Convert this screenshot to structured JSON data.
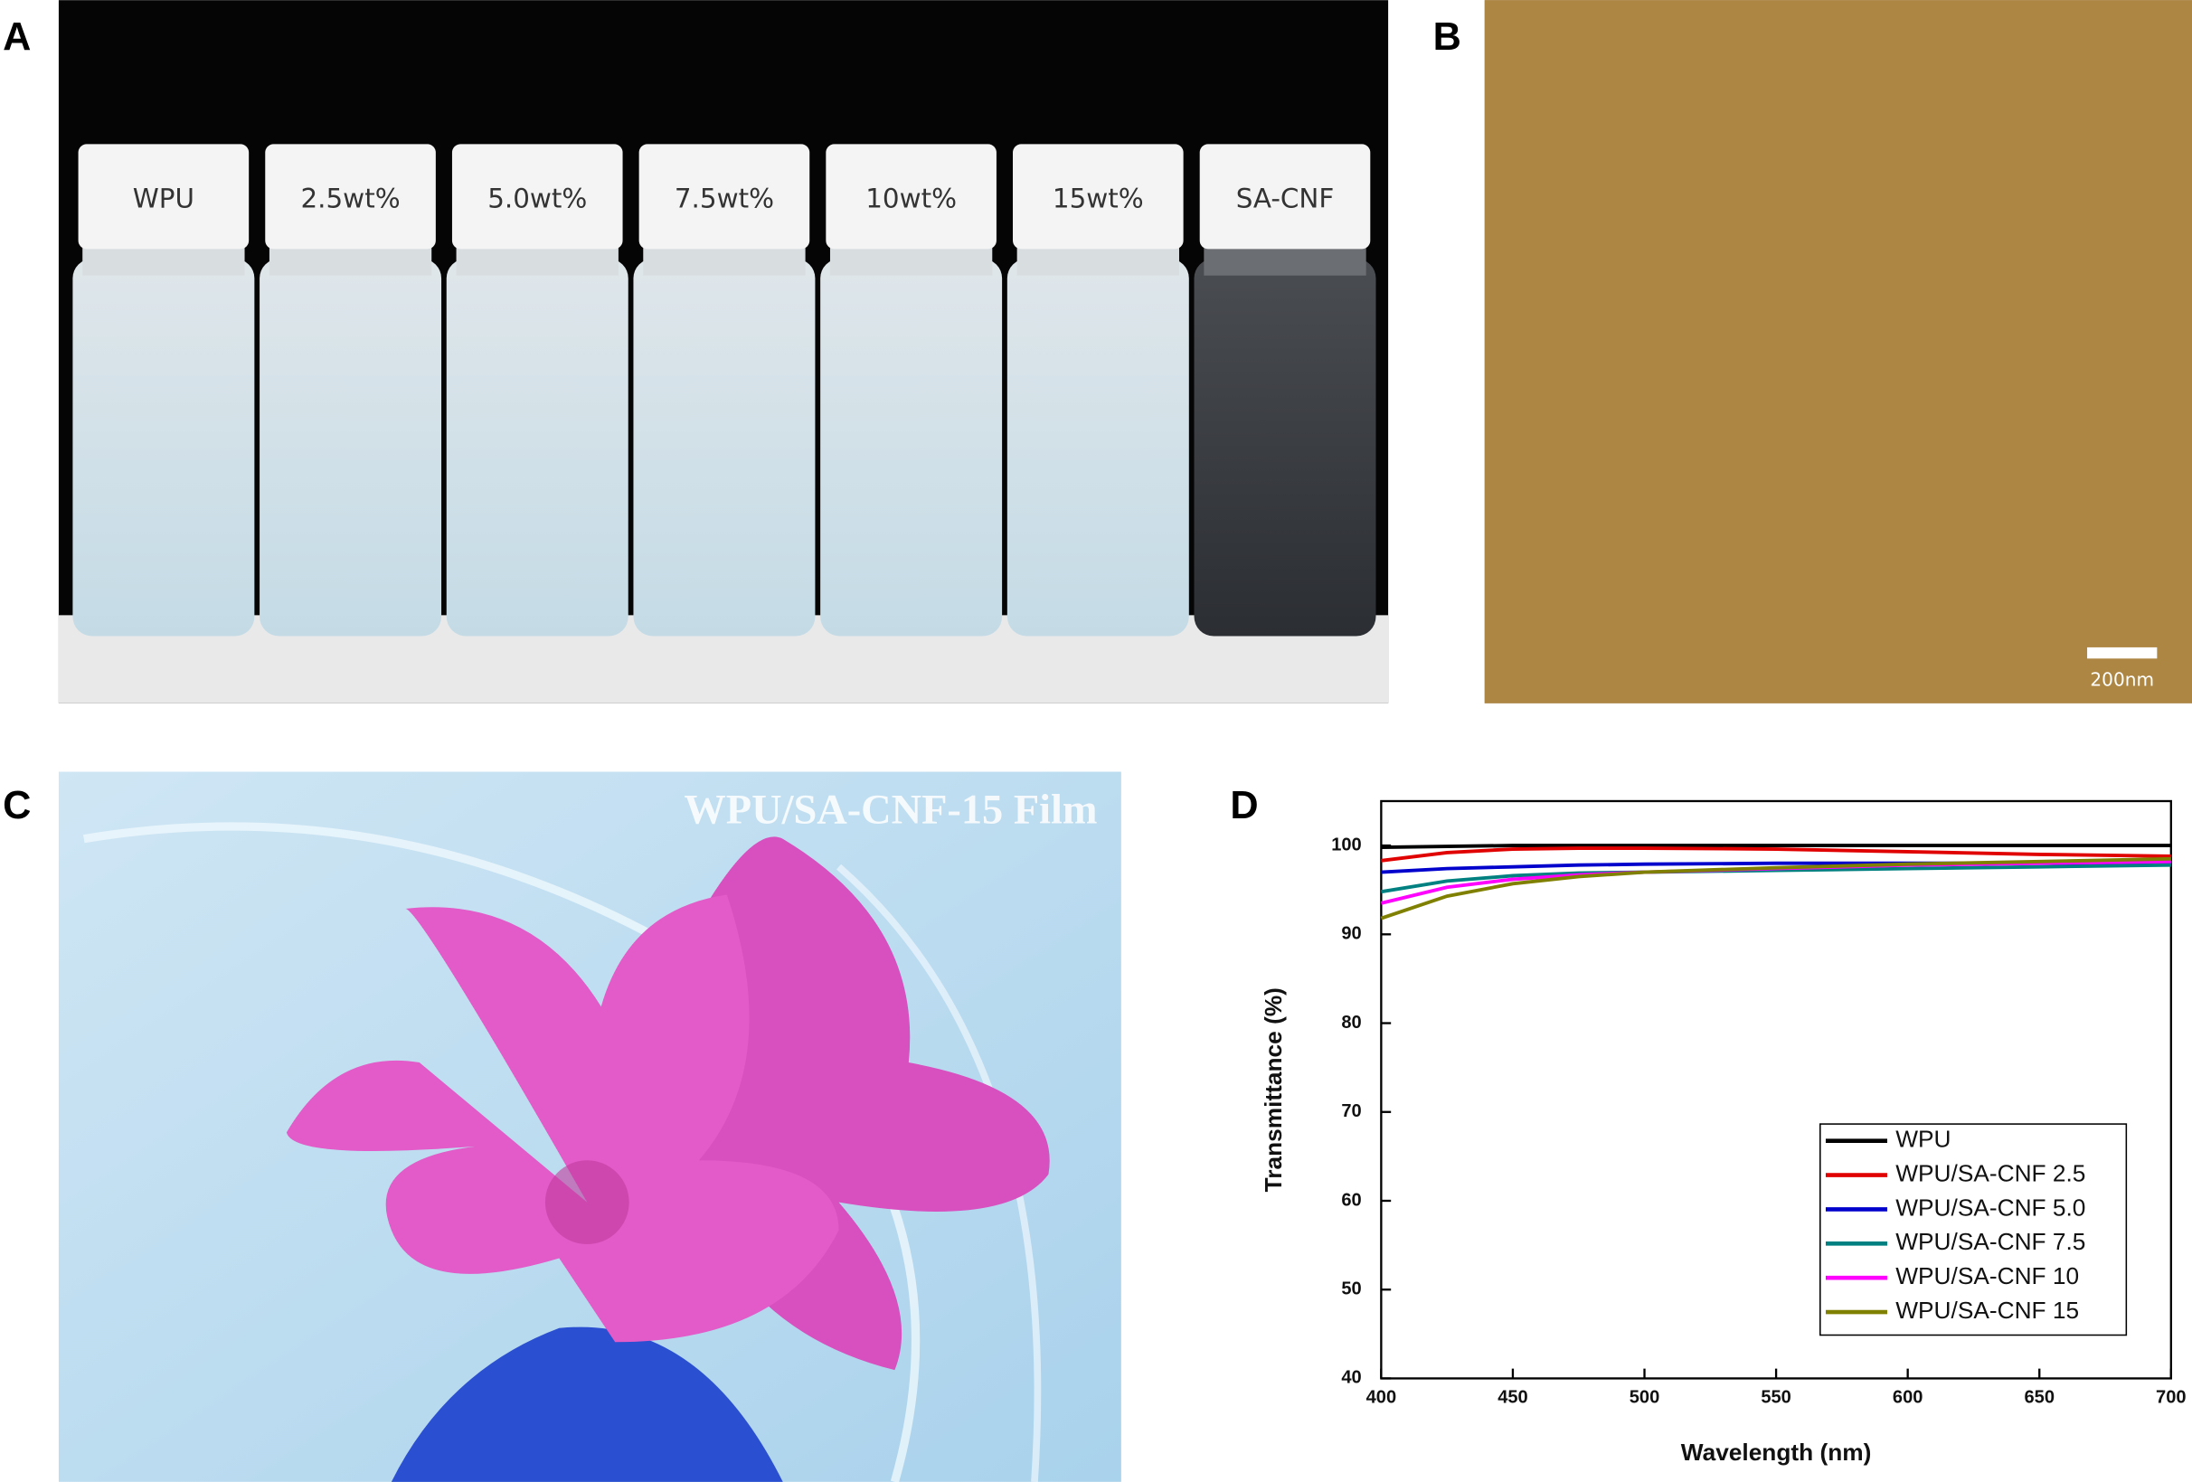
{
  "panel_a": {
    "label": "A",
    "vials": [
      "WPU",
      "2.5wt%",
      "5.0wt%",
      "7.5wt%",
      "10wt%",
      "15wt%",
      "SA-CNF"
    ]
  },
  "panel_b": {
    "label": "B",
    "scale_bar": "200nm"
  },
  "panel_c": {
    "label": "C",
    "caption": "WPU/SA-CNF-15 Film"
  },
  "chart_data": {
    "type": "line",
    "panel_label": "D",
    "x_label": "Wavelength (nm)",
    "y_label": "Transmittance (%)",
    "x": [
      400,
      425,
      450,
      475,
      500,
      550,
      600,
      650,
      700
    ],
    "series": [
      {
        "name": "WPU",
        "color": "#000000",
        "values": [
          99.8,
          99.9,
          100,
          100,
          100,
          100,
          100,
          100,
          100
        ]
      },
      {
        "name": "WPU/SA-CNF 2.5",
        "color": "#e00000",
        "values": [
          98.3,
          99.2,
          99.6,
          99.7,
          99.7,
          99.6,
          99.3,
          99.0,
          98.8
        ]
      },
      {
        "name": "WPU/SA-CNF 5.0",
        "color": "#0000cc",
        "values": [
          97.0,
          97.4,
          97.6,
          97.8,
          97.9,
          98.0,
          98.0,
          98.0,
          98.0
        ]
      },
      {
        "name": "WPU/SA-CNF 7.5",
        "color": "#008080",
        "values": [
          94.8,
          96.0,
          96.6,
          96.9,
          97.0,
          97.2,
          97.4,
          97.6,
          97.8
        ]
      },
      {
        "name": "WPU/SA-CNF 10",
        "color": "#ff00ff",
        "values": [
          93.5,
          95.3,
          96.2,
          96.7,
          97.0,
          97.4,
          97.8,
          98.0,
          98.2
        ]
      },
      {
        "name": "WPU/SA-CNF 15",
        "color": "#808000",
        "values": [
          91.8,
          94.3,
          95.7,
          96.5,
          97.0,
          97.5,
          97.9,
          98.2,
          98.5
        ]
      }
    ],
    "xlim": [
      400,
      700
    ],
    "xticks": [
      400,
      450,
      500,
      550,
      600,
      650,
      700
    ],
    "ylim": [
      40,
      105
    ],
    "yticks": [
      40,
      50,
      60,
      70,
      80,
      90,
      100
    ],
    "legend": "lower right"
  }
}
